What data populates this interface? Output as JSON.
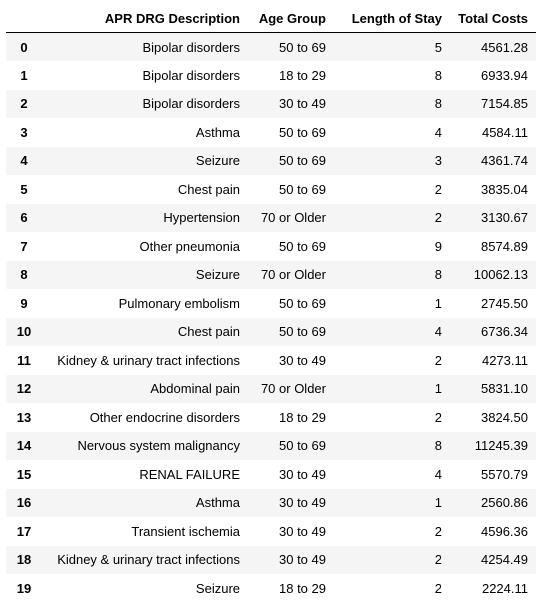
{
  "table": {
    "columns": [
      "",
      "APR DRG Description",
      "Age Group",
      "Length of Stay",
      "Total Costs"
    ],
    "rows": [
      {
        "index": "0",
        "description": "Bipolar disorders",
        "age_group": "50 to 69",
        "length_of_stay": "5",
        "total_costs": "4561.28"
      },
      {
        "index": "1",
        "description": "Bipolar disorders",
        "age_group": "18 to 29",
        "length_of_stay": "8",
        "total_costs": "6933.94"
      },
      {
        "index": "2",
        "description": "Bipolar disorders",
        "age_group": "30 to 49",
        "length_of_stay": "8",
        "total_costs": "7154.85"
      },
      {
        "index": "3",
        "description": "Asthma",
        "age_group": "50 to 69",
        "length_of_stay": "4",
        "total_costs": "4584.11"
      },
      {
        "index": "4",
        "description": "Seizure",
        "age_group": "50 to 69",
        "length_of_stay": "3",
        "total_costs": "4361.74"
      },
      {
        "index": "5",
        "description": "Chest pain",
        "age_group": "50 to 69",
        "length_of_stay": "2",
        "total_costs": "3835.04"
      },
      {
        "index": "6",
        "description": "Hypertension",
        "age_group": "70 or Older",
        "length_of_stay": "2",
        "total_costs": "3130.67"
      },
      {
        "index": "7",
        "description": "Other pneumonia",
        "age_group": "50 to 69",
        "length_of_stay": "9",
        "total_costs": "8574.89"
      },
      {
        "index": "8",
        "description": "Seizure",
        "age_group": "70 or Older",
        "length_of_stay": "8",
        "total_costs": "10062.13"
      },
      {
        "index": "9",
        "description": "Pulmonary embolism",
        "age_group": "50 to 69",
        "length_of_stay": "1",
        "total_costs": "2745.50"
      },
      {
        "index": "10",
        "description": "Chest pain",
        "age_group": "50 to 69",
        "length_of_stay": "4",
        "total_costs": "6736.34"
      },
      {
        "index": "11",
        "description": "Kidney & urinary tract infections",
        "age_group": "30 to 49",
        "length_of_stay": "2",
        "total_costs": "4273.11"
      },
      {
        "index": "12",
        "description": "Abdominal pain",
        "age_group": "70 or Older",
        "length_of_stay": "1",
        "total_costs": "5831.10"
      },
      {
        "index": "13",
        "description": "Other endocrine disorders",
        "age_group": "18 to 29",
        "length_of_stay": "2",
        "total_costs": "3824.50"
      },
      {
        "index": "14",
        "description": "Nervous system malignancy",
        "age_group": "50 to 69",
        "length_of_stay": "8",
        "total_costs": "11245.39"
      },
      {
        "index": "15",
        "description": "RENAL FAILURE",
        "age_group": "30 to 49",
        "length_of_stay": "4",
        "total_costs": "5570.79"
      },
      {
        "index": "16",
        "description": "Asthma",
        "age_group": "30 to 49",
        "length_of_stay": "1",
        "total_costs": "2560.86"
      },
      {
        "index": "17",
        "description": "Transient ischemia",
        "age_group": "30 to 49",
        "length_of_stay": "2",
        "total_costs": "4596.36"
      },
      {
        "index": "18",
        "description": "Kidney & urinary tract infections",
        "age_group": "30 to 49",
        "length_of_stay": "2",
        "total_costs": "4254.49"
      },
      {
        "index": "19",
        "description": "Seizure",
        "age_group": "18 to 29",
        "length_of_stay": "2",
        "total_costs": "2224.11"
      }
    ]
  }
}
